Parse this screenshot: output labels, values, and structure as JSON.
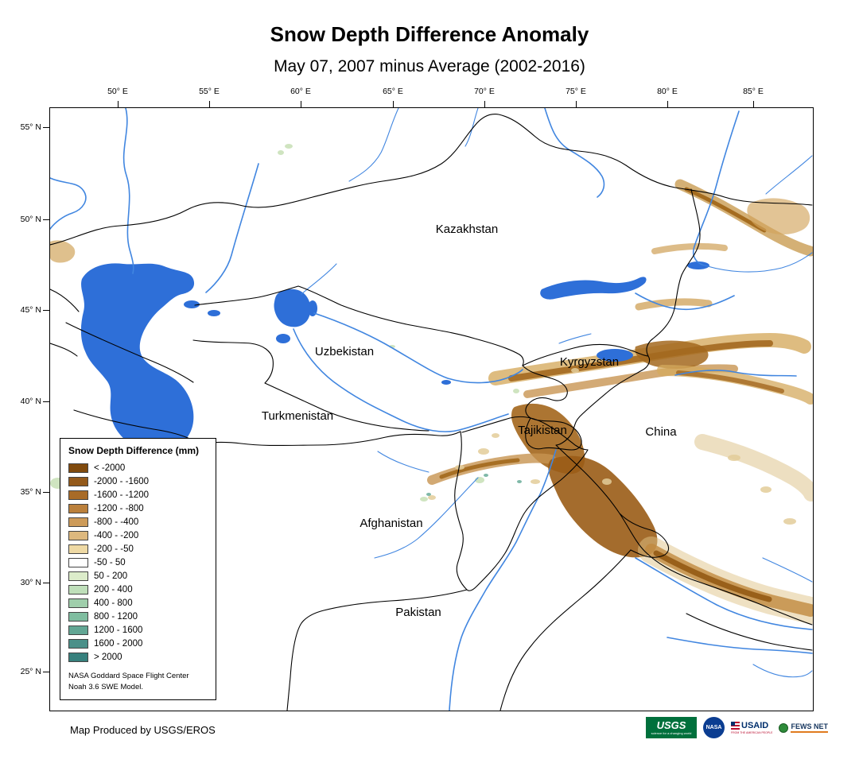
{
  "header": {
    "title": "Snow Depth Difference Anomaly",
    "subtitle": "May 07, 2007 minus Average (2002-2016)"
  },
  "map": {
    "x_ticks": [
      "50° E",
      "55° E",
      "60° E",
      "65° E",
      "70° E",
      "75° E",
      "80° E",
      "85° E"
    ],
    "y_ticks": [
      "55° N",
      "50° N",
      "45° N",
      "40° N",
      "35° N",
      "30° N",
      "25° N"
    ],
    "country_labels": [
      "Kazakhstan",
      "Uzbekistan",
      "Turkmenistan",
      "Kyrgyzstan",
      "Tajikistan",
      "China",
      "Afghanistan",
      "Pakistan"
    ]
  },
  "legend": {
    "title": "Snow Depth Difference (mm)",
    "entries": [
      {
        "label": "< -2000",
        "color": "#804a0d"
      },
      {
        "label": "-2000 - -1600",
        "color": "#93591a"
      },
      {
        "label": "-1600 - -1200",
        "color": "#a86b28"
      },
      {
        "label": "-1200 - -800",
        "color": "#bb803b"
      },
      {
        "label": "-800 - -400",
        "color": "#cd9b59"
      },
      {
        "label": "-400 - -200",
        "color": "#ddb87e"
      },
      {
        "label": "-200 - -50",
        "color": "#eed9a4"
      },
      {
        "label": "-50 - 50",
        "color": "#ffffff"
      },
      {
        "label": "50 - 200",
        "color": "#dcecca"
      },
      {
        "label": "200 - 400",
        "color": "#bfdfba"
      },
      {
        "label": "400 - 800",
        "color": "#9fceab"
      },
      {
        "label": "800 - 1200",
        "color": "#7fbda0"
      },
      {
        "label": "1200 - 1600",
        "color": "#62a694"
      },
      {
        "label": "1600 - 2000",
        "color": "#4b9089"
      },
      {
        "label": "> 2000",
        "color": "#37807d"
      }
    ],
    "note_line1": "NASA Goddard Space Flight Center",
    "note_line2": "Noah 3.6 SWE Model."
  },
  "footer": {
    "credit": "Map Produced by USGS/EROS"
  },
  "logos": {
    "usgs_label": "USGS",
    "usgs_tagline": "science for a changing world",
    "nasa_label": "NASA",
    "usaid_label": "USAID",
    "usaid_tagline": "FROM THE AMERICAN PEOPLE",
    "fewsnet_label": "FEWS NET"
  },
  "colors": {
    "water": "#2e6fd8",
    "river": "#4186e0",
    "country_border": "#000000"
  }
}
